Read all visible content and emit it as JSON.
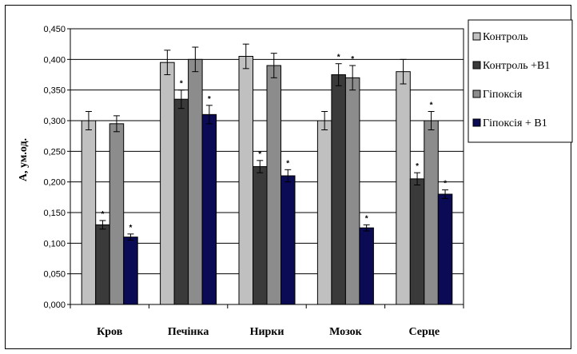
{
  "chart_data": {
    "type": "bar",
    "ylabel": "А, ум.од.",
    "ylim": [
      0,
      0.45
    ],
    "ytick_step": 0.05,
    "ytick_labels": [
      "0,000",
      "0,050",
      "0,100",
      "0,150",
      "0,200",
      "0,250",
      "0,300",
      "0,350",
      "0,400",
      "0,450"
    ],
    "grid": true,
    "legend_position": "right",
    "categories": [
      "Кров",
      "Печінка",
      "Нирки",
      "Мозок",
      "Серце"
    ],
    "significance_marker": "*",
    "series": [
      {
        "name": "Контроль",
        "color": "#c0c0c0",
        "values": [
          0.3,
          0.395,
          0.405,
          0.3,
          0.38
        ],
        "errors": [
          0.015,
          0.02,
          0.02,
          0.015,
          0.02
        ],
        "significant": [
          false,
          false,
          false,
          false,
          false
        ]
      },
      {
        "name": "Контроль +В1",
        "color": "#3a3a3a",
        "values": [
          0.13,
          0.335,
          0.225,
          0.375,
          0.205
        ],
        "errors": [
          0.007,
          0.015,
          0.01,
          0.018,
          0.01
        ],
        "significant": [
          true,
          true,
          true,
          true,
          true
        ]
      },
      {
        "name": "Гіпоксія",
        "color": "#8c8c8c",
        "values": [
          0.295,
          0.4,
          0.39,
          0.37,
          0.3
        ],
        "errors": [
          0.013,
          0.02,
          0.02,
          0.02,
          0.015
        ],
        "significant": [
          false,
          false,
          false,
          true,
          true
        ]
      },
      {
        "name": "Гіпоксія + В1",
        "color": "#0a0a55",
        "values": [
          0.11,
          0.31,
          0.21,
          0.125,
          0.18
        ],
        "errors": [
          0.005,
          0.015,
          0.01,
          0.005,
          0.007
        ],
        "significant": [
          true,
          true,
          true,
          true,
          true
        ]
      }
    ]
  }
}
